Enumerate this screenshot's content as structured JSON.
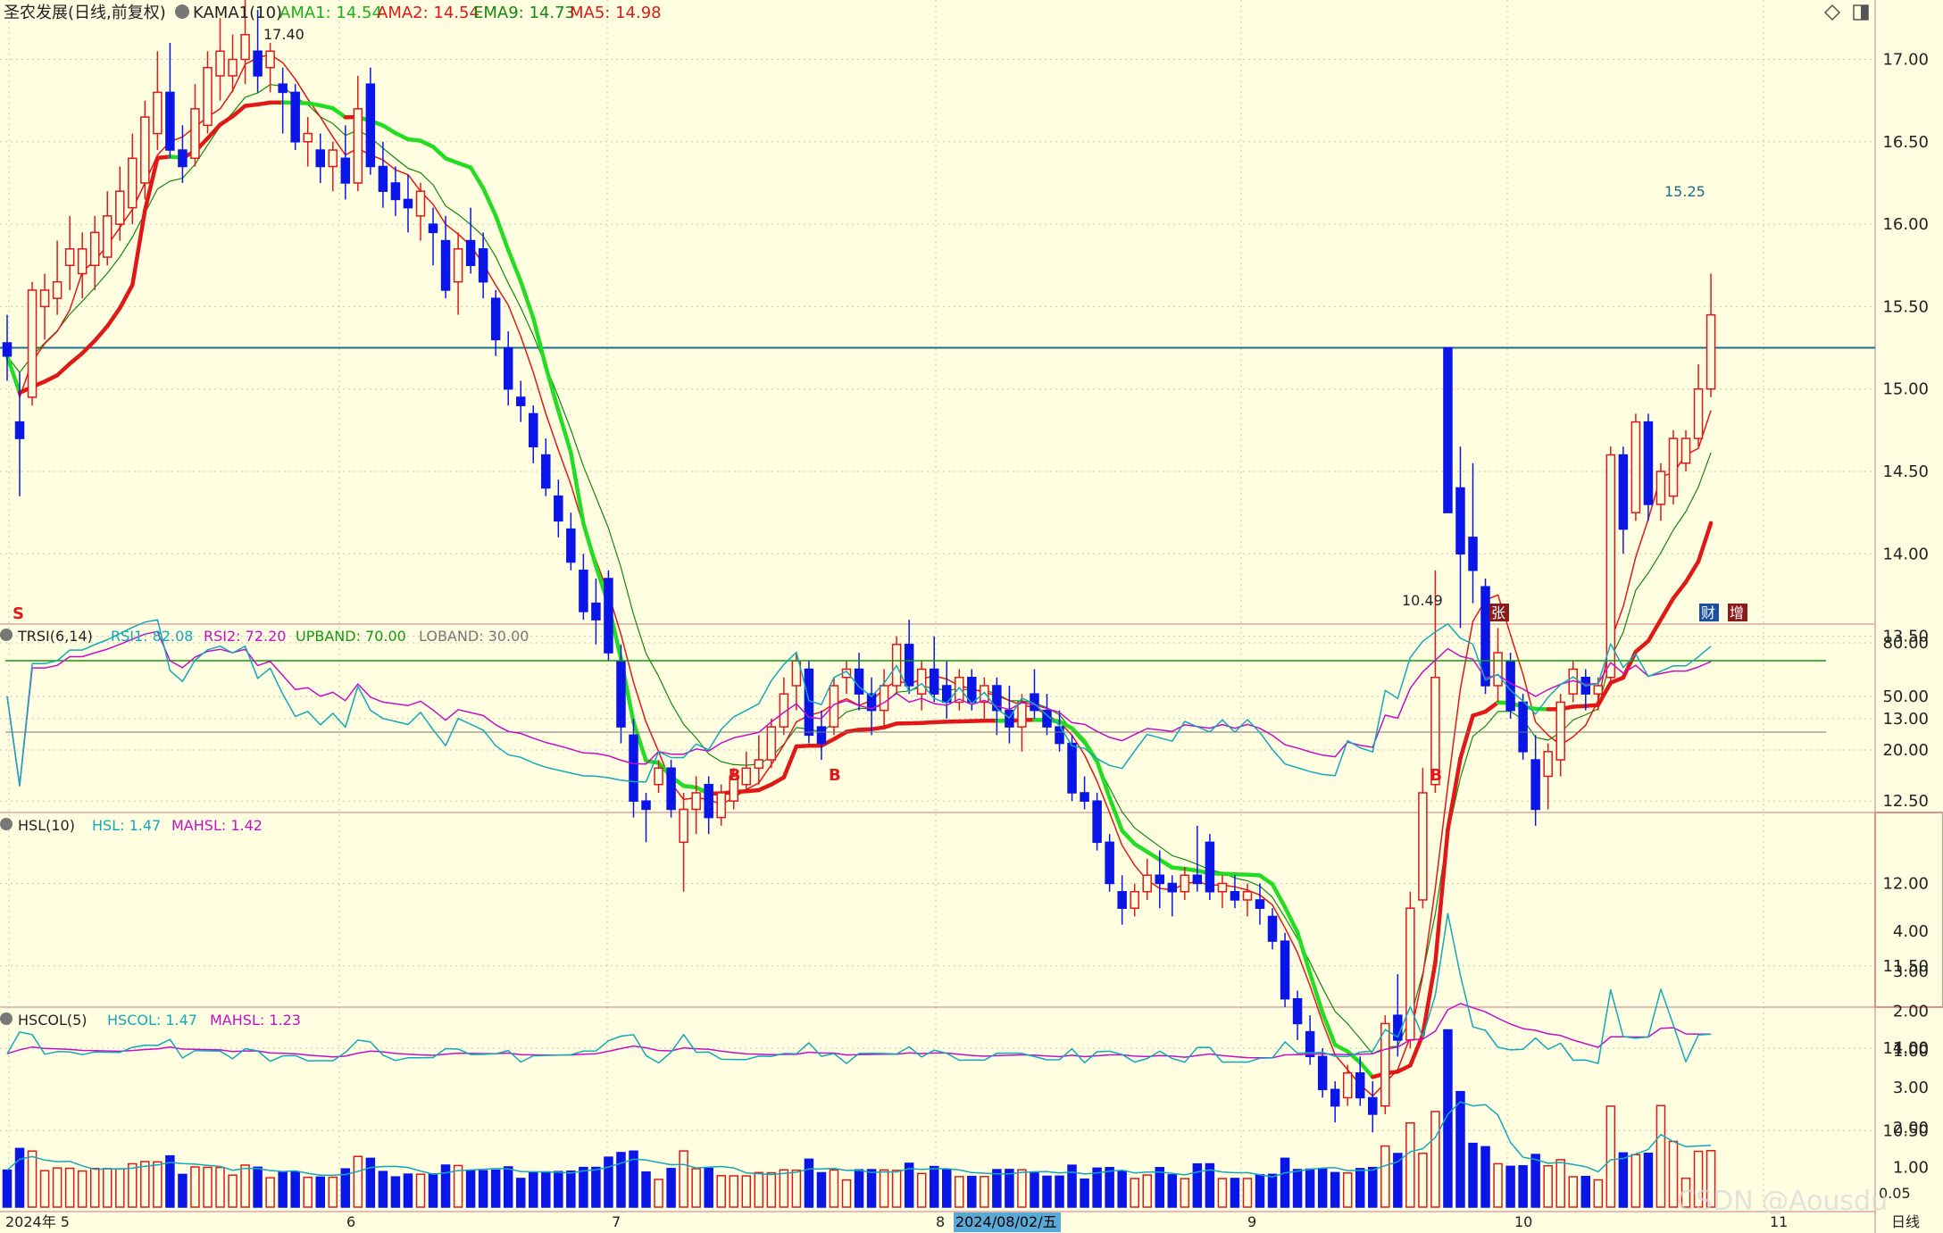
{
  "stock": {
    "name": "圣农发展(日线,前复权)"
  },
  "panels": {
    "main": {
      "indicator": "KAMA1(10)",
      "legend": [
        {
          "label": "AMA1: 14.54",
          "color": "#19b219"
        },
        {
          "label": "AMA2: 14.54",
          "color": "#e01818"
        },
        {
          "label": "EMA9: 14.73",
          "color": "#118811"
        },
        {
          "label": "MA5: 14.98",
          "color": "#e01818"
        }
      ],
      "y_ticks": [
        "17.00",
        "16.50",
        "16.00",
        "15.50",
        "15.00",
        "14.50",
        "14.00",
        "13.50",
        "13.00",
        "12.50",
        "12.00",
        "11.50",
        "11.00",
        "10.50"
      ],
      "hline_label": "15.25",
      "high_label": "17.40",
      "low_label": "10.49",
      "markers": [
        "S",
        "张",
        "财",
        "增"
      ]
    },
    "trsi": {
      "indicator": "TRSI(6,14)",
      "legend": [
        {
          "label": "RSI1: 82.08",
          "color": "#12a9b8"
        },
        {
          "label": "RSI2: 72.20",
          "color": "#c410c4"
        },
        {
          "label": "UPBAND: 70.00",
          "color": "#119911"
        },
        {
          "label": "LOBAND: 30.00",
          "color": "#777777"
        }
      ],
      "y_ticks": [
        "80.00",
        "50.00",
        "20.00"
      ],
      "signals": [
        "B",
        "B",
        "B",
        "S"
      ]
    },
    "hsl": {
      "indicator": "HSL(10)",
      "legend": [
        {
          "label": "HSL: 1.47",
          "color": "#12a9b8"
        },
        {
          "label": "MAHSL: 1.42",
          "color": "#c410c4"
        }
      ],
      "y_ticks": [
        "4.00",
        "3.00",
        "2.00",
        "1.00"
      ]
    },
    "hscol": {
      "indicator": "HSCOL(5)",
      "legend": [
        {
          "label": "HSCOL: 1.47",
          "color": "#12a9b8"
        },
        {
          "label": "MAHSL: 1.23",
          "color": "#c410c4"
        }
      ],
      "y_ticks": [
        "4.00",
        "3.00",
        "2.00",
        "1.00"
      ],
      "bottom_tick": "0.05"
    }
  },
  "x_axis": {
    "labels": [
      "2024年 5",
      "6",
      "7",
      "8",
      "9",
      "10",
      "11"
    ],
    "cursor_date": "2024/08/02/五",
    "period_label": "日线"
  },
  "watermark": "CSDN @Aousdu",
  "chart_data": {
    "type": "candlestick",
    "title": "圣农发展(日线,前复权)",
    "x_month_labels": [
      "2024年 5",
      "6",
      "7",
      "8",
      "9",
      "10",
      "11"
    ],
    "price_range": [
      10.3,
      17.45
    ],
    "resistance_line": 15.25,
    "candles": [
      {
        "o": 15.28,
        "h": 15.45,
        "l": 15.05,
        "c": 15.2
      },
      {
        "o": 14.8,
        "h": 15.1,
        "l": 14.35,
        "c": 14.7
      },
      {
        "o": 14.95,
        "h": 15.65,
        "l": 14.9,
        "c": 15.6
      },
      {
        "o": 15.5,
        "h": 15.7,
        "l": 15.3,
        "c": 15.6
      },
      {
        "o": 15.55,
        "h": 15.9,
        "l": 15.45,
        "c": 15.65
      },
      {
        "o": 15.75,
        "h": 16.05,
        "l": 15.6,
        "c": 15.85
      },
      {
        "o": 15.7,
        "h": 15.95,
        "l": 15.55,
        "c": 15.85
      },
      {
        "o": 15.75,
        "h": 16.05,
        "l": 15.6,
        "c": 15.95
      },
      {
        "o": 15.8,
        "h": 16.2,
        "l": 15.75,
        "c": 16.05
      },
      {
        "o": 16.0,
        "h": 16.35,
        "l": 15.9,
        "c": 16.2
      },
      {
        "o": 16.1,
        "h": 16.55,
        "l": 16.0,
        "c": 16.4
      },
      {
        "o": 16.25,
        "h": 16.75,
        "l": 16.15,
        "c": 16.65
      },
      {
        "o": 16.55,
        "h": 17.05,
        "l": 16.45,
        "c": 16.8
      },
      {
        "o": 16.8,
        "h": 17.1,
        "l": 16.4,
        "c": 16.45
      },
      {
        "o": 16.45,
        "h": 16.6,
        "l": 16.25,
        "c": 16.35
      },
      {
        "o": 16.4,
        "h": 16.85,
        "l": 16.35,
        "c": 16.7
      },
      {
        "o": 16.6,
        "h": 17.05,
        "l": 16.55,
        "c": 16.95
      },
      {
        "o": 16.9,
        "h": 17.25,
        "l": 16.75,
        "c": 17.05
      },
      {
        "o": 16.9,
        "h": 17.15,
        "l": 16.8,
        "c": 17.0
      },
      {
        "o": 17.0,
        "h": 17.4,
        "l": 16.85,
        "c": 17.15
      },
      {
        "o": 17.05,
        "h": 17.3,
        "l": 16.8,
        "c": 16.9
      },
      {
        "o": 16.95,
        "h": 17.1,
        "l": 16.8,
        "c": 17.05
      },
      {
        "o": 16.85,
        "h": 16.95,
        "l": 16.55,
        "c": 16.8
      },
      {
        "o": 16.8,
        "h": 16.85,
        "l": 16.45,
        "c": 16.5
      },
      {
        "o": 16.5,
        "h": 16.65,
        "l": 16.35,
        "c": 16.55
      },
      {
        "o": 16.45,
        "h": 16.55,
        "l": 16.25,
        "c": 16.35
      },
      {
        "o": 16.35,
        "h": 16.5,
        "l": 16.2,
        "c": 16.45
      },
      {
        "o": 16.4,
        "h": 16.6,
        "l": 16.15,
        "c": 16.25
      },
      {
        "o": 16.25,
        "h": 16.9,
        "l": 16.2,
        "c": 16.7
      },
      {
        "o": 16.85,
        "h": 16.95,
        "l": 16.3,
        "c": 16.35
      },
      {
        "o": 16.35,
        "h": 16.5,
        "l": 16.1,
        "c": 16.2
      },
      {
        "o": 16.25,
        "h": 16.35,
        "l": 16.05,
        "c": 16.15
      },
      {
        "o": 16.15,
        "h": 16.3,
        "l": 15.95,
        "c": 16.1
      },
      {
        "o": 16.05,
        "h": 16.25,
        "l": 15.9,
        "c": 16.2
      },
      {
        "o": 16.0,
        "h": 16.1,
        "l": 15.75,
        "c": 15.95
      },
      {
        "o": 15.9,
        "h": 16.05,
        "l": 15.55,
        "c": 15.6
      },
      {
        "o": 15.65,
        "h": 15.95,
        "l": 15.45,
        "c": 15.85
      },
      {
        "o": 15.9,
        "h": 16.1,
        "l": 15.7,
        "c": 15.75
      },
      {
        "o": 15.85,
        "h": 15.95,
        "l": 15.55,
        "c": 15.65
      },
      {
        "o": 15.55,
        "h": 15.6,
        "l": 15.2,
        "c": 15.3
      },
      {
        "o": 15.25,
        "h": 15.35,
        "l": 14.9,
        "c": 15.0
      },
      {
        "o": 14.95,
        "h": 15.05,
        "l": 14.8,
        "c": 14.9
      },
      {
        "o": 14.85,
        "h": 14.9,
        "l": 14.55,
        "c": 14.65
      },
      {
        "o": 14.6,
        "h": 14.7,
        "l": 14.35,
        "c": 14.4
      },
      {
        "o": 14.35,
        "h": 14.45,
        "l": 14.1,
        "c": 14.2
      },
      {
        "o": 14.15,
        "h": 14.25,
        "l": 13.9,
        "c": 13.95
      },
      {
        "o": 13.9,
        "h": 14.0,
        "l": 13.6,
        "c": 13.65
      },
      {
        "o": 13.7,
        "h": 13.85,
        "l": 13.45,
        "c": 13.6
      },
      {
        "o": 13.85,
        "h": 13.9,
        "l": 13.35,
        "c": 13.4
      },
      {
        "o": 13.35,
        "h": 13.45,
        "l": 12.85,
        "c": 12.95
      },
      {
        "o": 12.9,
        "h": 13.0,
        "l": 12.4,
        "c": 12.5
      },
      {
        "o": 12.5,
        "h": 12.55,
        "l": 12.25,
        "c": 12.45
      },
      {
        "o": 12.6,
        "h": 12.75,
        "l": 12.55,
        "c": 12.7
      },
      {
        "o": 12.7,
        "h": 12.75,
        "l": 12.4,
        "c": 12.45
      },
      {
        "o": 12.25,
        "h": 12.55,
        "l": 11.95,
        "c": 12.45
      },
      {
        "o": 12.45,
        "h": 12.65,
        "l": 12.3,
        "c": 12.55
      },
      {
        "o": 12.6,
        "h": 12.65,
        "l": 12.3,
        "c": 12.4
      },
      {
        "o": 12.4,
        "h": 12.6,
        "l": 12.35,
        "c": 12.55
      },
      {
        "o": 12.5,
        "h": 12.7,
        "l": 12.45,
        "c": 12.65
      },
      {
        "o": 12.6,
        "h": 12.8,
        "l": 12.55,
        "c": 12.7
      },
      {
        "o": 12.7,
        "h": 12.9,
        "l": 12.6,
        "c": 12.75
      },
      {
        "o": 12.75,
        "h": 13.0,
        "l": 12.7,
        "c": 12.95
      },
      {
        "o": 12.95,
        "h": 13.25,
        "l": 12.9,
        "c": 13.15
      },
      {
        "o": 13.2,
        "h": 13.4,
        "l": 13.05,
        "c": 13.35
      },
      {
        "o": 13.3,
        "h": 13.35,
        "l": 12.85,
        "c": 12.9
      },
      {
        "o": 12.95,
        "h": 13.05,
        "l": 12.75,
        "c": 12.85
      },
      {
        "o": 12.95,
        "h": 13.25,
        "l": 12.9,
        "c": 13.2
      },
      {
        "o": 13.25,
        "h": 13.35,
        "l": 13.15,
        "c": 13.3
      },
      {
        "o": 13.3,
        "h": 13.4,
        "l": 13.05,
        "c": 13.15
      },
      {
        "o": 13.15,
        "h": 13.25,
        "l": 12.9,
        "c": 13.05
      },
      {
        "o": 13.05,
        "h": 13.3,
        "l": 12.95,
        "c": 13.2
      },
      {
        "o": 13.2,
        "h": 13.5,
        "l": 13.15,
        "c": 13.45
      },
      {
        "o": 13.45,
        "h": 13.6,
        "l": 13.15,
        "c": 13.2
      },
      {
        "o": 13.15,
        "h": 13.35,
        "l": 13.05,
        "c": 13.3
      },
      {
        "o": 13.3,
        "h": 13.5,
        "l": 13.1,
        "c": 13.15
      },
      {
        "o": 13.2,
        "h": 13.35,
        "l": 13.0,
        "c": 13.1
      },
      {
        "o": 13.1,
        "h": 13.3,
        "l": 13.05,
        "c": 13.25
      },
      {
        "o": 13.25,
        "h": 13.3,
        "l": 13.05,
        "c": 13.1
      },
      {
        "o": 13.1,
        "h": 13.25,
        "l": 13.0,
        "c": 13.2
      },
      {
        "o": 13.2,
        "h": 13.25,
        "l": 12.9,
        "c": 13.05
      },
      {
        "o": 13.05,
        "h": 13.2,
        "l": 12.85,
        "c": 12.95
      },
      {
        "o": 12.95,
        "h": 13.15,
        "l": 12.8,
        "c": 13.1
      },
      {
        "o": 13.15,
        "h": 13.3,
        "l": 13.0,
        "c": 13.05
      },
      {
        "o": 13.05,
        "h": 13.15,
        "l": 12.9,
        "c": 12.95
      },
      {
        "o": 12.95,
        "h": 13.05,
        "l": 12.8,
        "c": 12.85
      },
      {
        "o": 12.85,
        "h": 12.9,
        "l": 12.5,
        "c": 12.55
      },
      {
        "o": 12.55,
        "h": 12.65,
        "l": 12.45,
        "c": 12.5
      },
      {
        "o": 12.5,
        "h": 12.55,
        "l": 12.2,
        "c": 12.25
      },
      {
        "o": 12.25,
        "h": 12.3,
        "l": 11.95,
        "c": 12.0
      },
      {
        "o": 11.95,
        "h": 12.05,
        "l": 11.75,
        "c": 11.85
      },
      {
        "o": 11.85,
        "h": 12.0,
        "l": 11.8,
        "c": 11.95
      },
      {
        "o": 11.95,
        "h": 12.15,
        "l": 11.9,
        "c": 12.05
      },
      {
        "o": 12.05,
        "h": 12.2,
        "l": 11.85,
        "c": 12.0
      },
      {
        "o": 12.0,
        "h": 12.05,
        "l": 11.8,
        "c": 11.95
      },
      {
        "o": 11.95,
        "h": 12.1,
        "l": 11.9,
        "c": 12.05
      },
      {
        "o": 12.05,
        "h": 12.35,
        "l": 11.95,
        "c": 12.0
      },
      {
        "o": 12.25,
        "h": 12.3,
        "l": 11.9,
        "c": 11.95
      },
      {
        "o": 11.95,
        "h": 12.05,
        "l": 11.85,
        "c": 12.0
      },
      {
        "o": 11.95,
        "h": 12.05,
        "l": 11.85,
        "c": 11.9
      },
      {
        "o": 11.9,
        "h": 12.0,
        "l": 11.8,
        "c": 11.95
      },
      {
        "o": 11.9,
        "h": 12.0,
        "l": 11.75,
        "c": 11.85
      },
      {
        "o": 11.8,
        "h": 11.85,
        "l": 11.6,
        "c": 11.65
      },
      {
        "o": 11.65,
        "h": 11.7,
        "l": 11.25,
        "c": 11.3
      },
      {
        "o": 11.3,
        "h": 11.35,
        "l": 11.05,
        "c": 11.15
      },
      {
        "o": 11.1,
        "h": 11.2,
        "l": 10.9,
        "c": 10.95
      },
      {
        "o": 10.95,
        "h": 11.0,
        "l": 10.7,
        "c": 10.75
      },
      {
        "o": 10.75,
        "h": 10.8,
        "l": 10.55,
        "c": 10.65
      },
      {
        "o": 10.7,
        "h": 10.9,
        "l": 10.65,
        "c": 10.85
      },
      {
        "o": 10.85,
        "h": 10.95,
        "l": 10.65,
        "c": 10.7
      },
      {
        "o": 10.7,
        "h": 10.8,
        "l": 10.49,
        "c": 10.6
      },
      {
        "o": 10.65,
        "h": 11.2,
        "l": 10.6,
        "c": 11.15
      },
      {
        "o": 11.2,
        "h": 11.45,
        "l": 10.95,
        "c": 11.05
      },
      {
        "o": 11.05,
        "h": 11.95,
        "l": 11.0,
        "c": 11.85
      },
      {
        "o": 11.9,
        "h": 12.7,
        "l": 11.85,
        "c": 12.55
      },
      {
        "o": 12.6,
        "h": 13.9,
        "l": 12.55,
        "c": 13.25
      },
      {
        "o": 15.25,
        "h": 15.25,
        "l": 14.25,
        "c": 14.25
      },
      {
        "o": 14.4,
        "h": 14.65,
        "l": 13.55,
        "c": 14.0
      },
      {
        "o": 14.1,
        "h": 14.55,
        "l": 13.7,
        "c": 13.9
      },
      {
        "o": 13.8,
        "h": 13.85,
        "l": 13.15,
        "c": 13.2
      },
      {
        "o": 13.2,
        "h": 13.55,
        "l": 13.1,
        "c": 13.4
      },
      {
        "o": 13.35,
        "h": 13.4,
        "l": 13.0,
        "c": 13.05
      },
      {
        "o": 13.1,
        "h": 13.15,
        "l": 12.75,
        "c": 12.8
      },
      {
        "o": 12.75,
        "h": 12.9,
        "l": 12.35,
        "c": 12.45
      },
      {
        "o": 12.65,
        "h": 12.85,
        "l": 12.45,
        "c": 12.8
      },
      {
        "o": 12.75,
        "h": 13.15,
        "l": 12.65,
        "c": 13.1
      },
      {
        "o": 13.15,
        "h": 13.35,
        "l": 13.1,
        "c": 13.3
      },
      {
        "o": 13.25,
        "h": 13.3,
        "l": 13.05,
        "c": 13.15
      },
      {
        "o": 13.15,
        "h": 13.25,
        "l": 13.05,
        "c": 13.2
      },
      {
        "o": 13.25,
        "h": 14.65,
        "l": 13.2,
        "c": 14.6
      },
      {
        "o": 14.6,
        "h": 14.65,
        "l": 14.0,
        "c": 14.15
      },
      {
        "o": 14.25,
        "h": 14.85,
        "l": 14.2,
        "c": 14.8
      },
      {
        "o": 14.8,
        "h": 14.85,
        "l": 14.2,
        "c": 14.3
      },
      {
        "o": 14.3,
        "h": 14.55,
        "l": 14.2,
        "c": 14.5
      },
      {
        "o": 14.35,
        "h": 14.75,
        "l": 14.3,
        "c": 14.7
      },
      {
        "o": 14.55,
        "h": 14.75,
        "l": 14.5,
        "c": 14.7
      },
      {
        "o": 14.7,
        "h": 15.15,
        "l": 14.65,
        "c": 15.0
      },
      {
        "o": 15.0,
        "h": 15.7,
        "l": 14.95,
        "c": 15.45
      }
    ]
  }
}
